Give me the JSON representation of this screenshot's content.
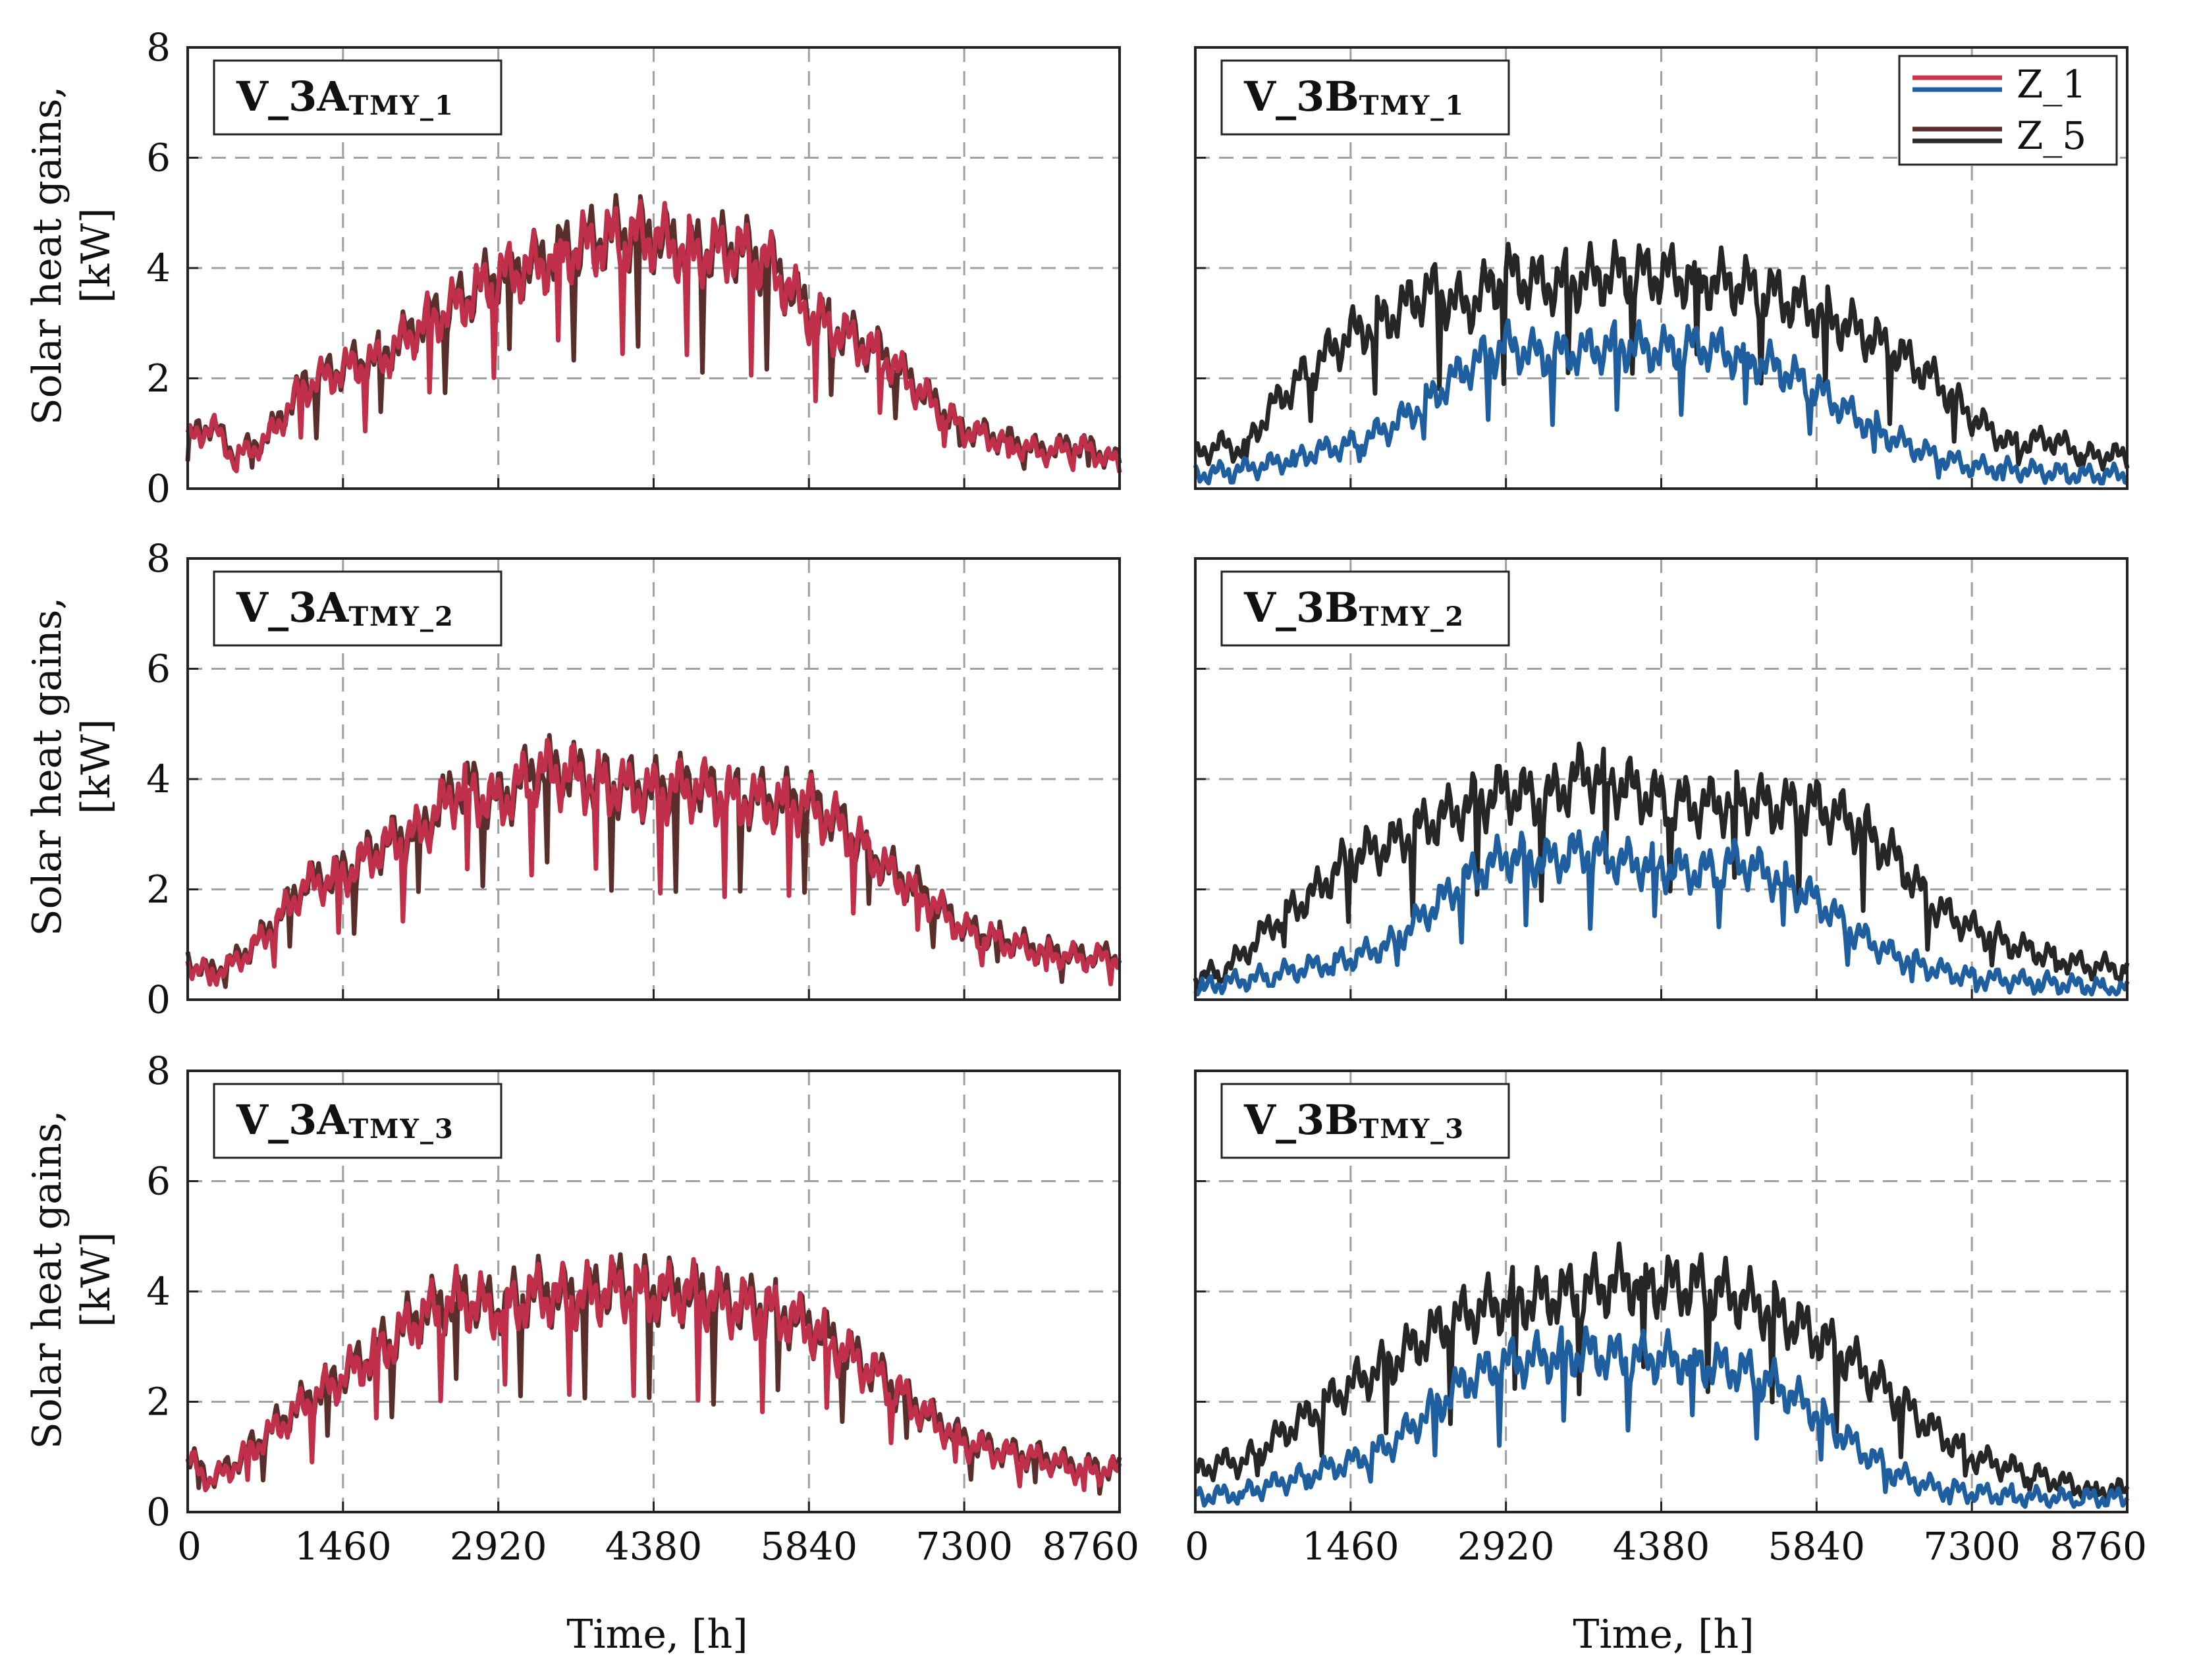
{
  "figure": {
    "y_axis_title_line1": "Solar heat gains,",
    "y_axis_title_line2": "[kW]",
    "x_axis_title": "Time, [h]"
  },
  "legend": {
    "items": [
      {
        "label": "Z_1",
        "colors": [
          "#c8384a",
          "#2060a0"
        ]
      },
      {
        "label": "Z_5",
        "colors": [
          "#5a2e2a",
          "#2a2a2a"
        ]
      }
    ]
  },
  "colors": {
    "z1_variant_a": "#c0304a",
    "z5_variant_a": "#5a2e2a",
    "z1_variant_b": "#1f5f9f",
    "z5_variant_b": "#262626",
    "grid": "#a0a0a0"
  },
  "chart_data": [
    {
      "type": "line",
      "title": "V_3A",
      "subscript": "TMY_1",
      "xlabel": "",
      "ylabel": "Solar heat gains, [kW]",
      "xlim": [
        0,
        8760
      ],
      "ylim": [
        0,
        8
      ],
      "xticks": [],
      "yticks": [
        "0",
        "2",
        "4",
        "6",
        "8"
      ],
      "x": [
        0,
        220,
        440,
        730,
        1095,
        1460,
        1825,
        2190,
        2555,
        2920,
        3285,
        3650,
        4015,
        4380,
        4745,
        5110,
        5475,
        5840,
        6205,
        6570,
        6935,
        7300,
        7665,
        8030,
        8395,
        8760
      ],
      "series": [
        {
          "name": "Z_5",
          "values": [
            0.9,
            1.2,
            0.6,
            0.9,
            1.9,
            2.2,
            2.4,
            3.0,
            3.4,
            3.9,
            4.1,
            4.4,
            4.6,
            4.6,
            4.3,
            4.4,
            4.1,
            3.2,
            2.8,
            2.4,
            1.7,
            1.1,
            0.9,
            0.7,
            0.8,
            0.5
          ]
        },
        {
          "name": "Z_1",
          "values": [
            0.85,
            1.15,
            0.55,
            0.85,
            1.85,
            2.15,
            2.35,
            2.95,
            3.35,
            3.85,
            4.05,
            4.35,
            4.55,
            4.55,
            4.25,
            4.35,
            4.05,
            3.15,
            2.75,
            2.35,
            1.65,
            1.05,
            0.85,
            0.65,
            0.75,
            0.45
          ]
        }
      ]
    },
    {
      "type": "line",
      "title": "V_3B",
      "subscript": "TMY_1",
      "xlabel": "",
      "ylabel": "",
      "xlim": [
        0,
        8760
      ],
      "ylim": [
        0,
        8
      ],
      "xticks": [],
      "yticks": [],
      "x": [
        0,
        220,
        440,
        730,
        1095,
        1460,
        1825,
        2190,
        2555,
        2920,
        3285,
        3650,
        4015,
        4380,
        4745,
        5110,
        5475,
        5840,
        6205,
        6570,
        6935,
        7300,
        7665,
        8030,
        8395,
        8760
      ],
      "series": [
        {
          "name": "Z_5",
          "values": [
            0.6,
            0.8,
            0.7,
            1.5,
            2.2,
            2.8,
            3.1,
            3.6,
            3.3,
            3.9,
            3.7,
            3.8,
            3.9,
            3.9,
            3.8,
            3.7,
            3.5,
            3.2,
            2.9,
            2.5,
            2.0,
            1.3,
            0.8,
            0.9,
            0.6,
            0.6
          ]
        },
        {
          "name": "Z_1",
          "values": [
            0.25,
            0.3,
            0.35,
            0.45,
            0.65,
            0.8,
            1.1,
            1.6,
            2.2,
            2.6,
            2.4,
            2.5,
            2.6,
            2.5,
            2.6,
            2.4,
            2.2,
            1.8,
            1.3,
            0.9,
            0.6,
            0.4,
            0.35,
            0.3,
            0.25,
            0.25
          ]
        }
      ]
    },
    {
      "type": "line",
      "title": "V_3A",
      "subscript": "TMY_2",
      "xlabel": "",
      "ylabel": "Solar heat gains, [kW]",
      "xlim": [
        0,
        8760
      ],
      "ylim": [
        0,
        8
      ],
      "xticks": [],
      "yticks": [
        "0",
        "2",
        "4",
        "6",
        "8"
      ],
      "x": [
        0,
        220,
        440,
        730,
        1095,
        1460,
        1825,
        2190,
        2555,
        2920,
        3285,
        3650,
        4015,
        4380,
        4745,
        5110,
        5475,
        5840,
        6205,
        6570,
        6935,
        7300,
        7665,
        8030,
        8395,
        8760
      ],
      "series": [
        {
          "name": "Z_5",
          "values": [
            0.7,
            0.5,
            0.7,
            1.2,
            2.1,
            2.3,
            2.8,
            3.1,
            3.9,
            3.6,
            4.2,
            4.1,
            3.9,
            3.8,
            3.9,
            3.7,
            3.6,
            3.6,
            3.1,
            2.4,
            1.9,
            1.3,
            1.1,
            0.9,
            0.8,
            0.8
          ]
        },
        {
          "name": "Z_1",
          "values": [
            0.65,
            0.45,
            0.65,
            1.15,
            2.05,
            2.25,
            2.75,
            3.05,
            3.85,
            3.55,
            4.15,
            4.05,
            3.85,
            3.75,
            3.85,
            3.65,
            3.55,
            3.55,
            3.05,
            2.35,
            1.85,
            1.25,
            1.05,
            0.85,
            0.75,
            0.75
          ]
        }
      ]
    },
    {
      "type": "line",
      "title": "V_3B",
      "subscript": "TMY_2",
      "xlabel": "",
      "ylabel": "",
      "xlim": [
        0,
        8760
      ],
      "ylim": [
        0,
        8
      ],
      "xticks": [],
      "yticks": [],
      "x": [
        0,
        220,
        440,
        730,
        1095,
        1460,
        1825,
        2190,
        2555,
        2920,
        3285,
        3650,
        4015,
        4380,
        4745,
        5110,
        5475,
        5840,
        6205,
        6570,
        6935,
        7300,
        7665,
        8030,
        8395,
        8760
      ],
      "series": [
        {
          "name": "Z_5",
          "values": [
            0.4,
            0.5,
            0.8,
            1.4,
            1.9,
            2.6,
            2.8,
            3.2,
            3.5,
            3.8,
            3.6,
            4.1,
            3.9,
            3.6,
            3.5,
            3.6,
            3.5,
            3.5,
            3.2,
            2.6,
            1.7,
            1.3,
            1.0,
            0.8,
            0.6,
            0.6
          ]
        },
        {
          "name": "Z_1",
          "values": [
            0.2,
            0.3,
            0.35,
            0.45,
            0.6,
            0.75,
            1.0,
            1.6,
            2.2,
            2.6,
            2.5,
            2.7,
            2.5,
            2.4,
            2.3,
            2.5,
            2.2,
            1.8,
            1.2,
            0.8,
            0.55,
            0.4,
            0.35,
            0.3,
            0.25,
            0.2
          ]
        }
      ]
    },
    {
      "type": "line",
      "title": "V_3A",
      "subscript": "TMY_3",
      "xlabel": "Time, [h]",
      "ylabel": "Solar heat gains, [kW]",
      "xlim": [
        0,
        8760
      ],
      "ylim": [
        0,
        8
      ],
      "xticks": [
        "0",
        "1460",
        "2920",
        "4380",
        "5840",
        "7300",
        "8760"
      ],
      "yticks": [
        "0",
        "2",
        "4",
        "6",
        "8"
      ],
      "x": [
        0,
        220,
        440,
        730,
        1095,
        1460,
        1825,
        2190,
        2555,
        2920,
        3285,
        3650,
        4015,
        4380,
        4745,
        5110,
        5475,
        5840,
        6205,
        6570,
        6935,
        7300,
        7665,
        8030,
        8395,
        8760
      ],
      "series": [
        {
          "name": "Z_5",
          "values": [
            1.0,
            0.6,
            0.9,
            1.4,
            2.0,
            2.5,
            3.0,
            3.6,
            3.9,
            3.7,
            4.0,
            3.9,
            4.1,
            4.0,
            4.0,
            3.8,
            3.7,
            3.4,
            2.9,
            2.4,
            1.8,
            1.3,
            1.1,
            1.0,
            0.8,
            0.8
          ]
        },
        {
          "name": "Z_1",
          "values": [
            0.95,
            0.55,
            0.85,
            1.35,
            1.95,
            2.45,
            2.95,
            3.55,
            3.85,
            3.65,
            3.95,
            3.85,
            4.05,
            3.95,
            3.95,
            3.75,
            3.65,
            3.35,
            2.85,
            2.35,
            1.75,
            1.25,
            1.05,
            0.95,
            0.75,
            0.75
          ]
        }
      ]
    },
    {
      "type": "line",
      "title": "V_3B",
      "subscript": "TMY_3",
      "xlabel": "Time, [h]",
      "ylabel": "",
      "xlim": [
        0,
        8760
      ],
      "ylim": [
        0,
        8
      ],
      "xticks": [
        "0",
        "1460",
        "2920",
        "4380",
        "5840",
        "7300",
        "8760"
      ],
      "yticks": [],
      "x": [
        0,
        220,
        440,
        730,
        1095,
        1460,
        1825,
        2190,
        2555,
        2920,
        3285,
        3650,
        4015,
        4380,
        4745,
        5110,
        5475,
        5840,
        6205,
        6570,
        6935,
        7300,
        7665,
        8030,
        8395,
        8760
      ],
      "series": [
        {
          "name": "Z_5",
          "values": [
            0.7,
            0.9,
            0.9,
            1.3,
            1.8,
            2.3,
            2.7,
            3.2,
            3.6,
            3.8,
            3.9,
            4.0,
            4.2,
            4.1,
            4.1,
            3.9,
            3.6,
            3.2,
            2.7,
            2.1,
            1.5,
            1.0,
            0.8,
            0.6,
            0.4,
            0.4
          ]
        },
        {
          "name": "Z_1",
          "values": [
            0.3,
            0.3,
            0.35,
            0.5,
            0.7,
            0.9,
            1.2,
            1.8,
            2.4,
            2.7,
            2.8,
            2.9,
            2.8,
            2.8,
            2.7,
            2.6,
            2.3,
            1.8,
            1.2,
            0.7,
            0.45,
            0.35,
            0.3,
            0.25,
            0.25,
            0.25
          ]
        }
      ]
    }
  ]
}
